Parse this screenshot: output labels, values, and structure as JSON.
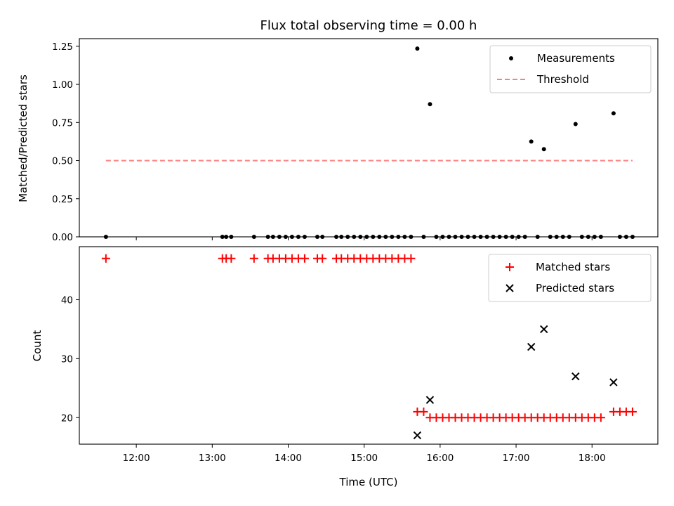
{
  "chart_data": {
    "type": "scatter",
    "title": "Flux total observing time = 0.00 h",
    "xlabel": "Time (UTC)",
    "xlim": [
      "11:15",
      "18:52"
    ],
    "x_ticks": [
      "12:00",
      "13:00",
      "14:00",
      "15:00",
      "16:00",
      "17:00",
      "18:00"
    ],
    "x_tick_minutes": [
      720,
      780,
      840,
      900,
      960,
      1020,
      1080
    ],
    "panels": [
      {
        "name": "ratio",
        "ylabel": "Matched/Predicted stars",
        "ylim": [
          0,
          1.3
        ],
        "y_ticks": [
          "0.00",
          "0.25",
          "0.50",
          "0.75",
          "1.00",
          "1.25"
        ],
        "y_tick_values": [
          0,
          0.25,
          0.5,
          0.75,
          1.0,
          1.25
        ],
        "legend_position": "top-right",
        "series": [
          {
            "name": "Measurements",
            "kind": "points",
            "color": "#000000",
            "points": [
              [
                "11:36",
                0
              ],
              [
                "13:08",
                0
              ],
              [
                "13:11",
                0
              ],
              [
                "13:15",
                0
              ],
              [
                "13:33",
                0
              ],
              [
                "13:44",
                0
              ],
              [
                "13:48",
                0
              ],
              [
                "13:53",
                0
              ],
              [
                "13:58",
                0
              ],
              [
                "14:03",
                0
              ],
              [
                "14:08",
                0
              ],
              [
                "14:13",
                0
              ],
              [
                "14:23",
                0
              ],
              [
                "14:27",
                0
              ],
              [
                "14:38",
                0
              ],
              [
                "14:42",
                0
              ],
              [
                "14:47",
                0
              ],
              [
                "14:52",
                0
              ],
              [
                "14:57",
                0
              ],
              [
                "15:02",
                0
              ],
              [
                "15:07",
                0
              ],
              [
                "15:12",
                0
              ],
              [
                "15:17",
                0
              ],
              [
                "15:22",
                0
              ],
              [
                "15:27",
                0
              ],
              [
                "15:32",
                0
              ],
              [
                "15:37",
                0
              ],
              [
                "15:42",
                1.235
              ],
              [
                "15:47",
                0
              ],
              [
                "15:52",
                0.87
              ],
              [
                "15:57",
                0
              ],
              [
                "16:02",
                0
              ],
              [
                "16:07",
                0
              ],
              [
                "16:12",
                0
              ],
              [
                "16:17",
                0
              ],
              [
                "16:22",
                0
              ],
              [
                "16:27",
                0
              ],
              [
                "16:32",
                0
              ],
              [
                "16:37",
                0
              ],
              [
                "16:42",
                0
              ],
              [
                "16:47",
                0
              ],
              [
                "16:52",
                0
              ],
              [
                "16:57",
                0
              ],
              [
                "17:02",
                0
              ],
              [
                "17:07",
                0
              ],
              [
                "17:12",
                0.625
              ],
              [
                "17:17",
                0
              ],
              [
                "17:22",
                0.575
              ],
              [
                "17:27",
                0
              ],
              [
                "17:32",
                0
              ],
              [
                "17:37",
                0
              ],
              [
                "17:42",
                0
              ],
              [
                "17:47",
                0.74
              ],
              [
                "17:52",
                0
              ],
              [
                "17:57",
                0
              ],
              [
                "18:02",
                0
              ],
              [
                "18:07",
                0
              ],
              [
                "18:17",
                0.81
              ],
              [
                "18:22",
                0
              ],
              [
                "18:27",
                0
              ],
              [
                "18:32",
                0
              ]
            ]
          },
          {
            "name": "Threshold",
            "kind": "dashed-line",
            "color": "#ff7f7f",
            "points": [
              [
                "11:36",
                0.5
              ],
              [
                "18:32",
                0.5
              ]
            ]
          }
        ]
      },
      {
        "name": "counts",
        "ylabel": "Count",
        "ylim": [
          15.5,
          49
        ],
        "y_ticks": [
          "20",
          "30",
          "40"
        ],
        "y_tick_values": [
          20,
          30,
          40
        ],
        "legend_position": "top-right",
        "series": [
          {
            "name": "Matched stars",
            "marker": "plus",
            "color": "#ff0000",
            "points": [
              [
                "11:36",
                47
              ],
              [
                "13:08",
                47
              ],
              [
                "13:11",
                47
              ],
              [
                "13:15",
                47
              ],
              [
                "13:33",
                47
              ],
              [
                "13:44",
                47
              ],
              [
                "13:48",
                47
              ],
              [
                "13:53",
                47
              ],
              [
                "13:58",
                47
              ],
              [
                "14:03",
                47
              ],
              [
                "14:08",
                47
              ],
              [
                "14:13",
                47
              ],
              [
                "14:23",
                47
              ],
              [
                "14:27",
                47
              ],
              [
                "14:38",
                47
              ],
              [
                "14:42",
                47
              ],
              [
                "14:47",
                47
              ],
              [
                "14:52",
                47
              ],
              [
                "14:57",
                47
              ],
              [
                "15:02",
                47
              ],
              [
                "15:07",
                47
              ],
              [
                "15:12",
                47
              ],
              [
                "15:17",
                47
              ],
              [
                "15:22",
                47
              ],
              [
                "15:27",
                47
              ],
              [
                "15:32",
                47
              ],
              [
                "15:37",
                47
              ],
              [
                "15:42",
                21
              ],
              [
                "15:47",
                21
              ],
              [
                "15:52",
                20
              ],
              [
                "15:57",
                20
              ],
              [
                "16:02",
                20
              ],
              [
                "16:07",
                20
              ],
              [
                "16:12",
                20
              ],
              [
                "16:17",
                20
              ],
              [
                "16:22",
                20
              ],
              [
                "16:27",
                20
              ],
              [
                "16:32",
                20
              ],
              [
                "16:37",
                20
              ],
              [
                "16:42",
                20
              ],
              [
                "16:47",
                20
              ],
              [
                "16:52",
                20
              ],
              [
                "16:57",
                20
              ],
              [
                "17:02",
                20
              ],
              [
                "17:07",
                20
              ],
              [
                "17:12",
                20
              ],
              [
                "17:17",
                20
              ],
              [
                "17:22",
                20
              ],
              [
                "17:27",
                20
              ],
              [
                "17:32",
                20
              ],
              [
                "17:37",
                20
              ],
              [
                "17:42",
                20
              ],
              [
                "17:47",
                20
              ],
              [
                "17:52",
                20
              ],
              [
                "17:57",
                20
              ],
              [
                "18:02",
                20
              ],
              [
                "18:07",
                20
              ],
              [
                "18:17",
                21
              ],
              [
                "18:22",
                21
              ],
              [
                "18:27",
                21
              ],
              [
                "18:32",
                21
              ]
            ]
          },
          {
            "name": "Predicted stars",
            "marker": "x",
            "color": "#000000",
            "points": [
              [
                "15:42",
                17
              ],
              [
                "15:52",
                23
              ],
              [
                "17:12",
                32
              ],
              [
                "17:22",
                35
              ],
              [
                "17:47",
                27
              ],
              [
                "18:17",
                26
              ]
            ]
          }
        ]
      }
    ]
  }
}
